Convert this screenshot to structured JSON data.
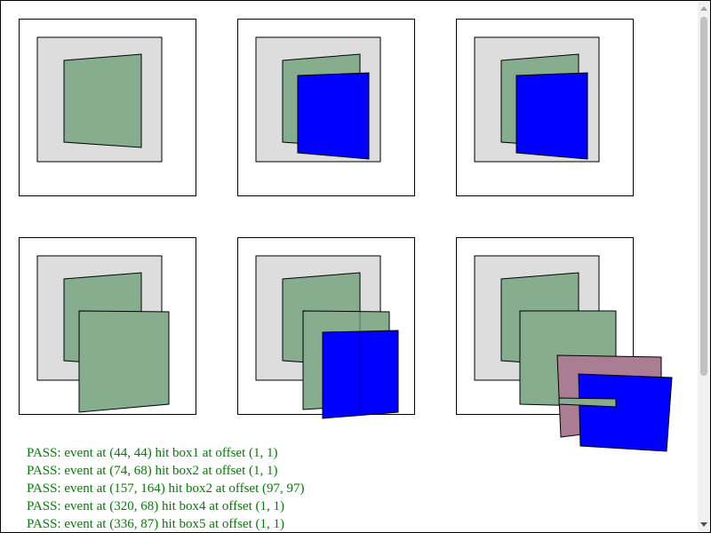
{
  "colors": {
    "box_fill": "#dddddd",
    "green": "#85ad8e",
    "blue": "#0000ff",
    "mauve": "#aa7d94",
    "pass_text": "#008000"
  },
  "results": [
    "PASS: event at (44, 44) hit box1 at offset (1, 1)",
    "PASS: event at (74, 68) hit box2 at offset (1, 1)",
    "PASS: event at (157, 164) hit box2 at offset (97, 97)",
    "PASS: event at (320, 68) hit box4 at offset (1, 1)",
    "PASS: event at (336, 87) hit box5 at offset (1, 1)"
  ]
}
